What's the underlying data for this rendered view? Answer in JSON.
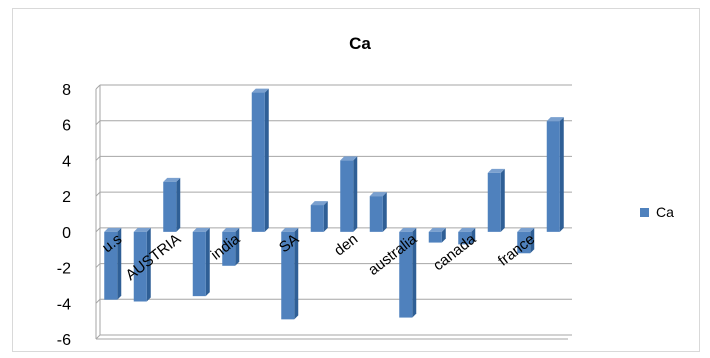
{
  "chart_data": {
    "type": "bar",
    "title": "Ca",
    "xlabel": "",
    "ylabel": "",
    "ylim": [
      -6,
      8
    ],
    "yticks": [
      8,
      6,
      4,
      2,
      0,
      -2,
      -4,
      -6
    ],
    "grid": true,
    "legend_position": "right",
    "categories": [
      "u.s",
      "",
      "AUSTRIA",
      "",
      "india",
      "",
      "SA",
      "",
      "den",
      "",
      "australia",
      "",
      "canada",
      "",
      "france",
      ""
    ],
    "series": [
      {
        "name": "Ca",
        "color": "#4f81bd",
        "values": [
          -3.8,
          -3.9,
          2.8,
          -3.6,
          -1.9,
          7.8,
          -4.9,
          1.5,
          4.0,
          2.0,
          -4.8,
          -0.6,
          -0.7,
          3.3,
          -1.2,
          6.2
        ]
      }
    ]
  }
}
